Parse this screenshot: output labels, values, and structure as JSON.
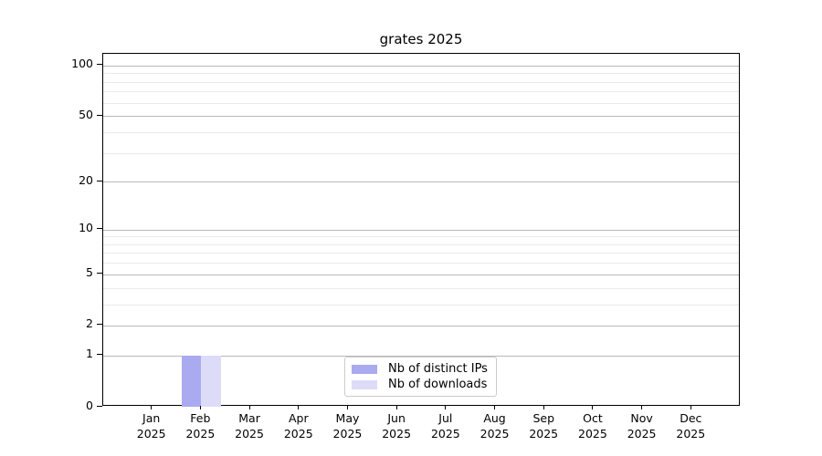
{
  "title": "grates 2025",
  "chart_data": {
    "type": "bar",
    "title": "grates 2025",
    "categories": [
      [
        "Jan",
        "2025"
      ],
      [
        "Feb",
        "2025"
      ],
      [
        "Mar",
        "2025"
      ],
      [
        "Apr",
        "2025"
      ],
      [
        "May",
        "2025"
      ],
      [
        "Jun",
        "2025"
      ],
      [
        "Jul",
        "2025"
      ],
      [
        "Aug",
        "2025"
      ],
      [
        "Sep",
        "2025"
      ],
      [
        "Oct",
        "2025"
      ],
      [
        "Nov",
        "2025"
      ],
      [
        "Dec",
        "2025"
      ]
    ],
    "series": [
      {
        "name": "Nb of distinct IPs",
        "color": "#aaaaf0",
        "values": [
          0,
          1,
          0,
          0,
          0,
          0,
          0,
          0,
          0,
          0,
          0,
          0
        ]
      },
      {
        "name": "Nb of downloads",
        "color": "#dcdcf8",
        "values": [
          0,
          1,
          0,
          0,
          0,
          0,
          0,
          0,
          0,
          0,
          0,
          0
        ]
      }
    ],
    "y_axis": {
      "scale": "log1p",
      "ylim": [
        0,
        117.4
      ],
      "tick_values": [
        100,
        50,
        20,
        10,
        5,
        2,
        1,
        0
      ],
      "major_gridlines": [
        1,
        2,
        5,
        10,
        20,
        50,
        100
      ],
      "minor_gridlines": [
        3,
        4,
        6,
        7,
        8,
        9,
        30,
        40,
        60,
        70,
        80,
        90
      ]
    },
    "legend_position": "bottom-center-inside",
    "grid": true
  },
  "colors": {
    "major_grid": "#b8b8b8",
    "minor_grid": "#eaeaea",
    "spine": "#000000"
  }
}
